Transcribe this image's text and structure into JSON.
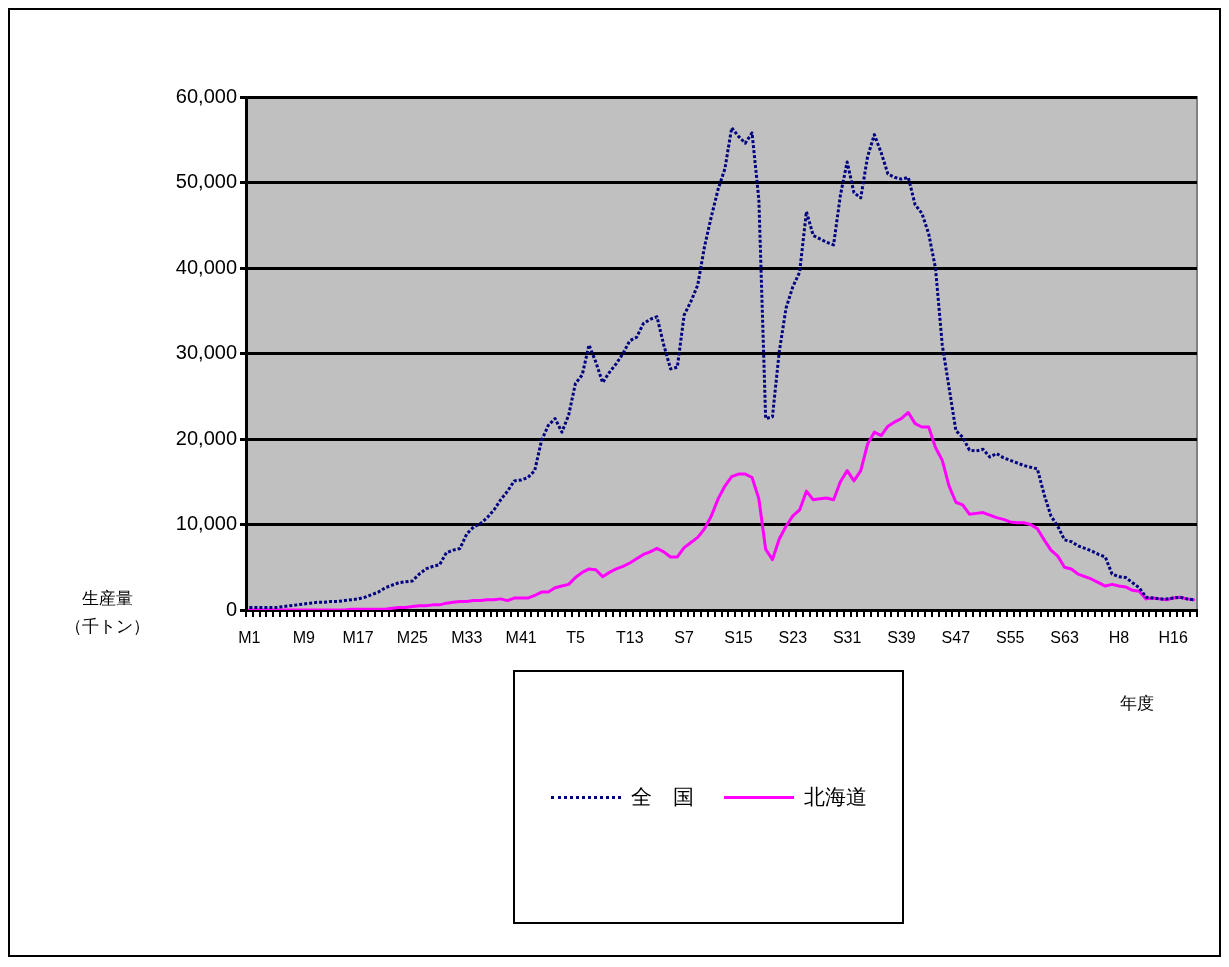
{
  "chart_data": {
    "type": "line",
    "xlabel": "年度",
    "ylabel": "生産量（千トン）",
    "categories": [
      "M1",
      null,
      null,
      null,
      null,
      null,
      null,
      null,
      "M9",
      null,
      null,
      null,
      null,
      null,
      null,
      null,
      "M17",
      null,
      null,
      null,
      null,
      null,
      null,
      null,
      "M25",
      null,
      null,
      null,
      null,
      null,
      null,
      null,
      "M33",
      null,
      null,
      null,
      null,
      null,
      null,
      null,
      "M41",
      null,
      null,
      null,
      null,
      null,
      null,
      null,
      "T5",
      null,
      null,
      null,
      null,
      null,
      null,
      null,
      "T13",
      null,
      null,
      null,
      null,
      null,
      null,
      null,
      "S7",
      null,
      null,
      null,
      null,
      null,
      null,
      null,
      "S15",
      null,
      null,
      null,
      null,
      null,
      null,
      null,
      "S23",
      null,
      null,
      null,
      null,
      null,
      null,
      null,
      "S31",
      null,
      null,
      null,
      null,
      null,
      null,
      null,
      "S39",
      null,
      null,
      null,
      null,
      null,
      null,
      null,
      "S47",
      null,
      null,
      null,
      null,
      null,
      null,
      null,
      "S55",
      null,
      null,
      null,
      null,
      null,
      null,
      null,
      "S63",
      null,
      null,
      null,
      null,
      null,
      null,
      null,
      "H8",
      null,
      null,
      null,
      null,
      null,
      null,
      null,
      "H16",
      null,
      null,
      null
    ],
    "series": [
      {
        "name": "全　国",
        "color": "#000080",
        "line_style": "dotted",
        "values": [
          300,
          300,
          300,
          300,
          300,
          400,
          500,
          600,
          700,
          800,
          900,
          900,
          1000,
          1000,
          1100,
          1200,
          1300,
          1500,
          1800,
          2100,
          2600,
          2900,
          3200,
          3300,
          3400,
          4200,
          4800,
          5100,
          5300,
          6700,
          7000,
          7200,
          8900,
          9700,
          10100,
          10800,
          11700,
          12900,
          13900,
          15100,
          15200,
          15500,
          16300,
          19800,
          21600,
          22400,
          20800,
          22800,
          26500,
          27500,
          31000,
          29000,
          26600,
          27800,
          28800,
          30000,
          31500,
          31900,
          33500,
          34000,
          34300,
          31000,
          28200,
          28400,
          34500,
          36100,
          38000,
          42500,
          46000,
          49200,
          51600,
          56400,
          55400,
          54600,
          55800,
          48000,
          22400,
          22600,
          30200,
          35300,
          37800,
          39500,
          46600,
          43800,
          43400,
          43000,
          42700,
          48500,
          52400,
          48800,
          48200,
          53000,
          55600,
          53500,
          51000,
          50600,
          50400,
          50600,
          47400,
          46400,
          44000,
          40000,
          31000,
          26000,
          21000,
          20200,
          18700,
          18600,
          18800,
          17900,
          18300,
          17800,
          17500,
          17200,
          16900,
          16700,
          16500,
          13500,
          11000,
          9800,
          8200,
          8000,
          7500,
          7200,
          6900,
          6500,
          6200,
          4200,
          3900,
          3800,
          3200,
          2600,
          1500,
          1400,
          1300,
          1300,
          1400,
          1500,
          1300,
          1200
        ]
      },
      {
        "name": "北海道",
        "color": "#ff00ff",
        "line_style": "solid",
        "values": [
          0,
          0,
          0,
          0,
          0,
          0,
          0,
          0,
          0,
          0,
          0,
          0,
          0,
          0,
          0,
          100,
          100,
          100,
          100,
          100,
          100,
          200,
          300,
          300,
          400,
          500,
          500,
          600,
          600,
          800,
          900,
          1000,
          1000,
          1100,
          1100,
          1200,
          1200,
          1300,
          1100,
          1400,
          1400,
          1400,
          1700,
          2100,
          2100,
          2600,
          2800,
          3000,
          3800,
          4400,
          4800,
          4700,
          3900,
          4400,
          4800,
          5100,
          5500,
          6000,
          6500,
          6800,
          7200,
          6800,
          6200,
          6200,
          7300,
          7900,
          8500,
          9500,
          11000,
          13000,
          14500,
          15600,
          15900,
          15900,
          15500,
          13000,
          7100,
          5900,
          8300,
          9800,
          11000,
          11700,
          13900,
          12900,
          13000,
          13100,
          12900,
          15000,
          16300,
          15100,
          16300,
          19400,
          20800,
          20400,
          21500,
          22000,
          22400,
          23100,
          21800,
          21400,
          21400,
          19000,
          17500,
          14500,
          12600,
          12300,
          11200,
          11300,
          11400,
          11100,
          10800,
          10600,
          10300,
          10200,
          10200,
          10000,
          9500,
          8200,
          7000,
          6300,
          5000,
          4800,
          4200,
          3900,
          3600,
          3200,
          2800,
          3000,
          2800,
          2700,
          2300,
          2200,
          1300,
          1400,
          1300,
          1200,
          1400,
          1500,
          1300,
          1200
        ]
      }
    ],
    "ylim": [
      0,
      60000
    ],
    "yticks": [
      {
        "value": 0,
        "label": "0"
      },
      {
        "value": 10000,
        "label": "10,000"
      },
      {
        "value": 20000,
        "label": "20,000"
      },
      {
        "value": 30000,
        "label": "30,000"
      },
      {
        "value": 40000,
        "label": "40,000"
      },
      {
        "value": 50000,
        "label": "50,000"
      },
      {
        "value": 60000,
        "label": "60,000"
      }
    ],
    "grid": "y",
    "legend": "bottom",
    "marker": "none"
  }
}
